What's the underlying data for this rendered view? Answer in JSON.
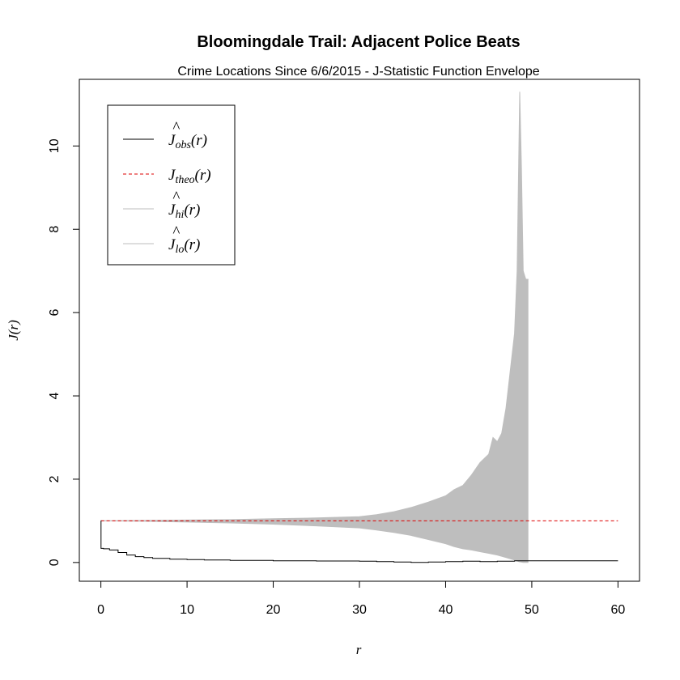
{
  "chart_data": {
    "type": "line",
    "title": "Bloomingdale Trail: Adjacent Police Beats",
    "subtitle": "Crime Locations Since 6/6/2015 - J-Statistic Function Envelope",
    "xlabel": "r",
    "ylabel": "J(r)",
    "xlim": [
      -2.5,
      62.5
    ],
    "ylim": [
      -0.45,
      11.6
    ],
    "xticks": [
      0,
      10,
      20,
      30,
      40,
      50,
      60
    ],
    "yticks": [
      0,
      2,
      4,
      6,
      8,
      10
    ],
    "grid": false,
    "legend_position": "top-left",
    "colors": {
      "observed": "#000000",
      "theoretical": "#dd0000",
      "envelope": "#bebebe"
    },
    "legend": [
      {
        "base": "J",
        "hat": "^",
        "sub": "obs",
        "arg": "(r)",
        "style": "solid",
        "color": "#000000"
      },
      {
        "base": "J",
        "hat": "",
        "sub": "theo",
        "arg": "(r)",
        "style": "dashed",
        "color": "#dd0000"
      },
      {
        "base": "J",
        "hat": "^",
        "sub": "hi",
        "arg": "(r)",
        "style": "solid",
        "color": "#bebebe"
      },
      {
        "base": "J",
        "hat": "^",
        "sub": "lo",
        "arg": "(r)",
        "style": "solid",
        "color": "#bebebe"
      }
    ],
    "series": [
      {
        "key": "obs",
        "x": [
          0,
          0.02,
          0.3,
          1,
          2,
          3,
          4,
          5,
          6,
          8,
          10,
          12,
          15,
          20,
          25,
          30,
          32,
          34,
          36,
          38,
          40,
          42,
          44,
          46,
          48,
          50,
          55,
          60
        ],
        "y": [
          1.0,
          0.34,
          0.33,
          0.3,
          0.24,
          0.18,
          0.14,
          0.12,
          0.1,
          0.08,
          0.07,
          0.06,
          0.05,
          0.04,
          0.035,
          0.03,
          0.02,
          0.01,
          0.0,
          0.01,
          0.02,
          0.03,
          0.02,
          0.03,
          0.04,
          0.04,
          0.04,
          0.04
        ]
      },
      {
        "key": "theo",
        "x": [
          0,
          60
        ],
        "y": [
          1.0,
          1.0
        ]
      },
      {
        "key": "hi",
        "x": [
          0,
          5,
          10,
          15,
          20,
          25,
          30,
          32,
          34,
          36,
          38,
          40,
          41,
          42,
          43,
          44,
          45,
          45.5,
          46,
          46.5,
          47,
          47.5,
          48,
          48.3,
          48.6,
          48.8,
          49,
          49.3,
          49.6
        ],
        "y": [
          1.0,
          1.01,
          1.02,
          1.03,
          1.05,
          1.07,
          1.1,
          1.15,
          1.22,
          1.32,
          1.45,
          1.6,
          1.75,
          1.85,
          2.1,
          2.4,
          2.6,
          3.0,
          2.9,
          3.1,
          3.7,
          4.6,
          5.5,
          7.0,
          11.3,
          9.5,
          7.0,
          6.8,
          6.8
        ]
      },
      {
        "key": "lo",
        "x": [
          0,
          5,
          10,
          15,
          20,
          25,
          30,
          32,
          34,
          36,
          38,
          40,
          41,
          42,
          43,
          44,
          45,
          46,
          47,
          48,
          48.5,
          49,
          49.6
        ],
        "y": [
          1.0,
          0.99,
          0.97,
          0.95,
          0.92,
          0.88,
          0.83,
          0.78,
          0.72,
          0.65,
          0.55,
          0.45,
          0.38,
          0.33,
          0.3,
          0.26,
          0.22,
          0.18,
          0.12,
          0.06,
          0.02,
          0.0,
          0.0
        ]
      }
    ]
  }
}
